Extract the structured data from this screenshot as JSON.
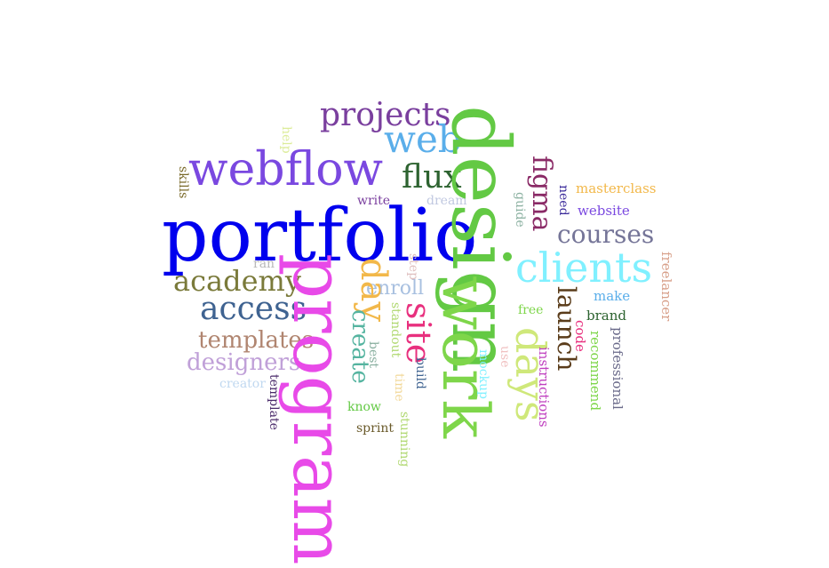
{
  "words": [
    {
      "text": "portfolio",
      "color": "#0000ee"
    },
    {
      "text": "design",
      "color": "#63c944"
    },
    {
      "text": "program",
      "color": "#e84ae8"
    },
    {
      "text": "work",
      "color": "#7ed64a"
    },
    {
      "text": "webflow",
      "color": "#7a48e0"
    },
    {
      "text": "clients",
      "color": "#80f0ff"
    },
    {
      "text": "projects",
      "color": "#7a3f9e"
    },
    {
      "text": "web",
      "color": "#5aaeea"
    },
    {
      "text": "flux",
      "color": "#2d6330"
    },
    {
      "text": "access",
      "color": "#3f6391"
    },
    {
      "text": "academy",
      "color": "#7a7a3a"
    },
    {
      "text": "figma",
      "color": "#8a2a66"
    },
    {
      "text": "courses",
      "color": "#757598"
    },
    {
      "text": "days",
      "color": "#cfe87a"
    },
    {
      "text": "day",
      "color": "#f2b84a"
    },
    {
      "text": "site",
      "color": "#e8307e"
    },
    {
      "text": "templates",
      "color": "#b08570"
    },
    {
      "text": "designers",
      "color": "#c0a0d8"
    },
    {
      "text": "launch",
      "color": "#5a3c1a"
    },
    {
      "text": "enroll",
      "color": "#a8c0e0"
    },
    {
      "text": "create",
      "color": "#55b4a0"
    },
    {
      "text": "masterclass",
      "color": "#f2b84a"
    },
    {
      "text": "website",
      "color": "#7a48e0"
    },
    {
      "text": "make",
      "color": "#5aaeea"
    },
    {
      "text": "brand",
      "color": "#2d6330"
    },
    {
      "text": "freelancer",
      "color": "#d8a08a"
    },
    {
      "text": "professional",
      "color": "#6a6a8a"
    },
    {
      "text": "recommend",
      "color": "#7ed64a"
    },
    {
      "text": "code",
      "color": "#e8307e"
    },
    {
      "text": "instructions",
      "color": "#c040c0"
    },
    {
      "text": "need",
      "color": "#3a2a9a"
    },
    {
      "text": "guide",
      "color": "#8ab0a0"
    },
    {
      "text": "dream",
      "color": "#c0c8e0"
    },
    {
      "text": "write",
      "color": "#7a3f9e"
    },
    {
      "text": "help",
      "color": "#dcec9a"
    },
    {
      "text": "skills",
      "color": "#7a6a2a"
    },
    {
      "text": "ran",
      "color": "#b8b8b8"
    },
    {
      "text": "step",
      "color": "#e0c0c0"
    },
    {
      "text": "free",
      "color": "#7ed64a"
    },
    {
      "text": "use",
      "color": "#f0c0c0"
    },
    {
      "text": "mockup",
      "color": "#80f0ff"
    },
    {
      "text": "build",
      "color": "#3f6391"
    },
    {
      "text": "time",
      "color": "#f2d89a"
    },
    {
      "text": "best",
      "color": "#8ab0a0"
    },
    {
      "text": "standout",
      "color": "#b0d870"
    },
    {
      "text": "stunning",
      "color": "#b0d870"
    },
    {
      "text": "know",
      "color": "#63c944"
    },
    {
      "text": "sprint",
      "color": "#6a5a2a"
    },
    {
      "text": "creator",
      "color": "#c0d8f0"
    },
    {
      "text": "template",
      "color": "#4a2a6a"
    }
  ]
}
